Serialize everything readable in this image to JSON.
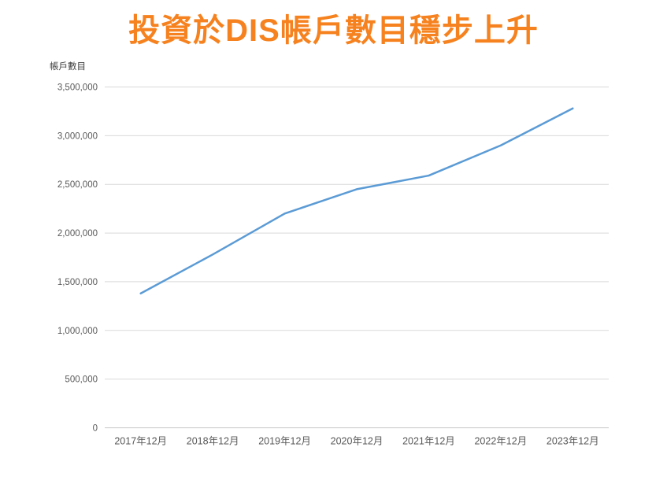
{
  "title": "投資於DIS帳戶數目穩步上升",
  "colors": {
    "title": "#F6821F",
    "line": "#5B9BD5",
    "gridline": "#D9D9D9",
    "axis_line": "#C6C6C6",
    "tick_text": "#595959",
    "axis_title_text": "#404040"
  },
  "chart_data": {
    "type": "line",
    "title": "投資於DIS帳戶數目穩步上升",
    "y_axis_title": "帳戶數目",
    "xlabel": "",
    "ylabel": "帳戶數目",
    "categories": [
      "2017年12月",
      "2018年12月",
      "2019年12月",
      "2020年12月",
      "2021年12月",
      "2022年12月",
      "2023年12月"
    ],
    "series": [
      {
        "name": "帳戶數目",
        "values": [
          1380000,
          1780000,
          2200000,
          2450000,
          2590000,
          2900000,
          3280000
        ]
      }
    ],
    "ylim": [
      0,
      3500000
    ],
    "yticks": [
      0,
      500000,
      1000000,
      1500000,
      2000000,
      2500000,
      3000000,
      3500000
    ],
    "grid": "horizontal",
    "legend": "none"
  }
}
